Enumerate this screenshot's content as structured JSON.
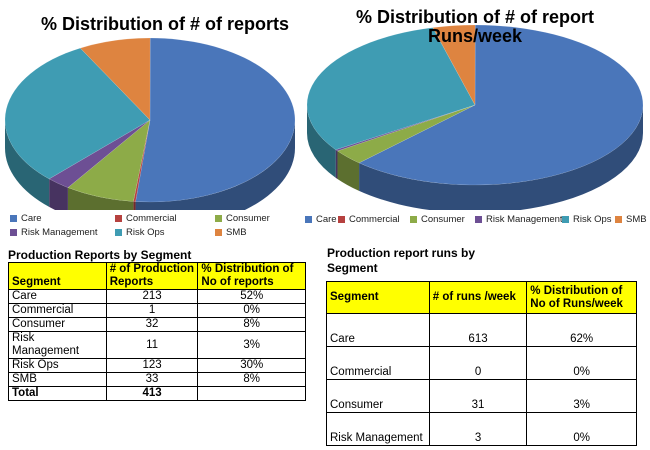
{
  "colors": {
    "Care": "#4a76ba",
    "Commercial": "#b6413f",
    "Consumer": "#8dab48",
    "Risk Management": "#6d4f94",
    "Risk Ops": "#3f9cb3",
    "SMB": "#de8440"
  },
  "chart_data": [
    {
      "type": "pie",
      "title": "% Distribution of # of reports",
      "categories": [
        "Care",
        "Commercial",
        "Consumer",
        "Risk Management",
        "Risk Ops",
        "SMB"
      ],
      "values": [
        213,
        1,
        32,
        11,
        123,
        33
      ],
      "legend": "bottom"
    },
    {
      "type": "pie",
      "title": "% Distribution of # of report Runs/week",
      "categories": [
        "Care",
        "Commercial",
        "Consumer",
        "Risk Management",
        "Risk Ops",
        "SMB"
      ],
      "values": [
        613,
        0,
        31,
        3,
        300,
        40
      ],
      "legend": "bottom"
    }
  ],
  "left_table": {
    "title": "Production Reports by Segment",
    "headers": [
      "Segment",
      "# of Production Reports",
      "% Distribution of No of reports"
    ],
    "rows": [
      [
        "Care",
        "213",
        "52%"
      ],
      [
        "Commercial",
        "1",
        "0%"
      ],
      [
        "Consumer",
        "32",
        "8%"
      ],
      [
        "Risk Management",
        "11",
        "3%"
      ],
      [
        "Risk Ops",
        "123",
        "30%"
      ],
      [
        "SMB",
        "33",
        "8%"
      ]
    ],
    "total": [
      "Total",
      "413",
      ""
    ]
  },
  "right_table": {
    "title": "Production report runs by Segment",
    "headers": [
      "Segment",
      "# of runs /week",
      "% Distribution of No of Runs/week"
    ],
    "rows": [
      [
        "Care",
        "613",
        "62%"
      ],
      [
        "Commercial",
        "0",
        "0%"
      ],
      [
        "Consumer",
        "31",
        "3%"
      ],
      [
        "Risk Management",
        "3",
        "0%"
      ]
    ]
  }
}
